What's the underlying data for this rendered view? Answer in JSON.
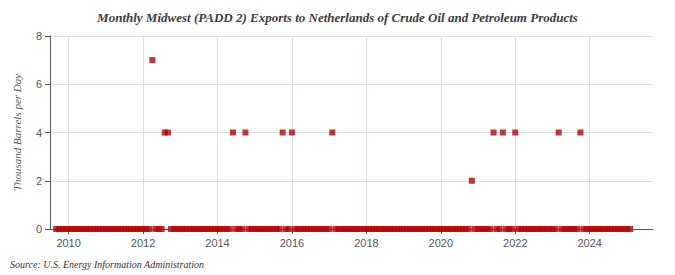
{
  "chart_data": {
    "type": "scatter",
    "title": "Monthly Midwest (PADD 2) Exports to Netherlands of Crude Oil and Petroleum Products",
    "ylabel": "Thousand Barrels per Day",
    "annotation": "Source: U.S. Energy Information Administration",
    "color": "#bb0000",
    "marker": "square",
    "grid": true,
    "xlim": [
      2009.5,
      2025.7
    ],
    "xticks": [
      2010,
      2012,
      2014,
      2016,
      2018,
      2020,
      2022,
      2024
    ],
    "ylim": [
      0,
      8
    ],
    "yticks": [
      0,
      2,
      4,
      6,
      8
    ],
    "x": [
      2009.667,
      2009.75,
      2009.833,
      2009.917,
      2010.0,
      2010.083,
      2010.167,
      2010.25,
      2010.333,
      2010.417,
      2010.5,
      2010.583,
      2010.667,
      2010.75,
      2010.833,
      2010.917,
      2011.0,
      2011.083,
      2011.167,
      2011.25,
      2011.333,
      2011.417,
      2011.5,
      2011.583,
      2011.667,
      2011.75,
      2011.833,
      2011.917,
      2012.0,
      2012.083,
      2012.167,
      2012.25,
      2012.333,
      2012.417,
      2012.5,
      2012.583,
      2012.667,
      2012.75,
      2012.833,
      2012.917,
      2013.0,
      2013.083,
      2013.167,
      2013.25,
      2013.333,
      2013.417,
      2013.5,
      2013.583,
      2013.667,
      2013.75,
      2013.833,
      2013.917,
      2014.0,
      2014.083,
      2014.167,
      2014.25,
      2014.333,
      2014.417,
      2014.5,
      2014.583,
      2014.667,
      2014.75,
      2014.833,
      2014.917,
      2015.0,
      2015.083,
      2015.167,
      2015.25,
      2015.333,
      2015.417,
      2015.5,
      2015.583,
      2015.667,
      2015.75,
      2015.833,
      2015.917,
      2016.0,
      2016.083,
      2016.167,
      2016.25,
      2016.333,
      2016.417,
      2016.5,
      2016.583,
      2016.667,
      2016.75,
      2016.833,
      2016.917,
      2017.0,
      2017.083,
      2017.167,
      2017.25,
      2017.333,
      2017.417,
      2017.5,
      2017.583,
      2017.667,
      2017.75,
      2017.833,
      2017.917,
      2018.0,
      2018.083,
      2018.167,
      2018.25,
      2018.333,
      2018.417,
      2018.5,
      2018.583,
      2018.667,
      2018.75,
      2018.833,
      2018.917,
      2019.0,
      2019.083,
      2019.167,
      2019.25,
      2019.333,
      2019.417,
      2019.5,
      2019.583,
      2019.667,
      2019.75,
      2019.833,
      2019.917,
      2020.0,
      2020.083,
      2020.167,
      2020.25,
      2020.333,
      2020.417,
      2020.5,
      2020.583,
      2020.667,
      2020.75,
      2020.833,
      2020.917,
      2021.0,
      2021.083,
      2021.167,
      2021.25,
      2021.333,
      2021.417,
      2021.5,
      2021.583,
      2021.667,
      2021.75,
      2021.833,
      2021.917,
      2022.0,
      2022.083,
      2022.167,
      2022.25,
      2022.333,
      2022.417,
      2022.5,
      2022.583,
      2022.667,
      2022.75,
      2022.833,
      2022.917,
      2023.0,
      2023.083,
      2023.167,
      2023.25,
      2023.333,
      2023.417,
      2023.5,
      2023.583,
      2023.667,
      2023.75,
      2023.833,
      2023.917,
      2024.0,
      2024.083,
      2024.167,
      2024.25,
      2024.333,
      2024.417,
      2024.5,
      2024.583,
      2024.667,
      2024.75,
      2024.833,
      2024.917,
      2025.0,
      2025.083
    ],
    "values": [
      0,
      0,
      0,
      0,
      0,
      0,
      0,
      0,
      0,
      0,
      0,
      0,
      0,
      0,
      0,
      0,
      0,
      0,
      0,
      0,
      0,
      0,
      0,
      0,
      0,
      0,
      0,
      0,
      0,
      0,
      0,
      7.0,
      0,
      0,
      0,
      4.0,
      4.0,
      0,
      0,
      0,
      0,
      0,
      0,
      0,
      0,
      0,
      0,
      0,
      0,
      0,
      0,
      0,
      0,
      0,
      0,
      0,
      0,
      4.0,
      0,
      0,
      0,
      4.0,
      0,
      0,
      0,
      0,
      0,
      0,
      0,
      0,
      0,
      0,
      0,
      4.0,
      0,
      0,
      4.0,
      0,
      0,
      0,
      0,
      0,
      0,
      0,
      0,
      0,
      0,
      0,
      0,
      4.0,
      0,
      0,
      0,
      0,
      0,
      0,
      0,
      0,
      0,
      0,
      0,
      0,
      0,
      0,
      0,
      0,
      0,
      0,
      0,
      0,
      0,
      0,
      0,
      0,
      0,
      0,
      0,
      0,
      0,
      0,
      0,
      0,
      0,
      0,
      0,
      0,
      0,
      0,
      0,
      0,
      0,
      0,
      0,
      0,
      2.0,
      0,
      0,
      0,
      0,
      0,
      0,
      4.0,
      0,
      0,
      4.0,
      0,
      0,
      0,
      4.0,
      0,
      0,
      0,
      0,
      0,
      0,
      0,
      0,
      0,
      0,
      0,
      0,
      0,
      4.0,
      0,
      0,
      0,
      0,
      0,
      0,
      4.0,
      0,
      0,
      0,
      0,
      0,
      0,
      0,
      0,
      0,
      0,
      0,
      0,
      0,
      0,
      0,
      0
    ]
  }
}
